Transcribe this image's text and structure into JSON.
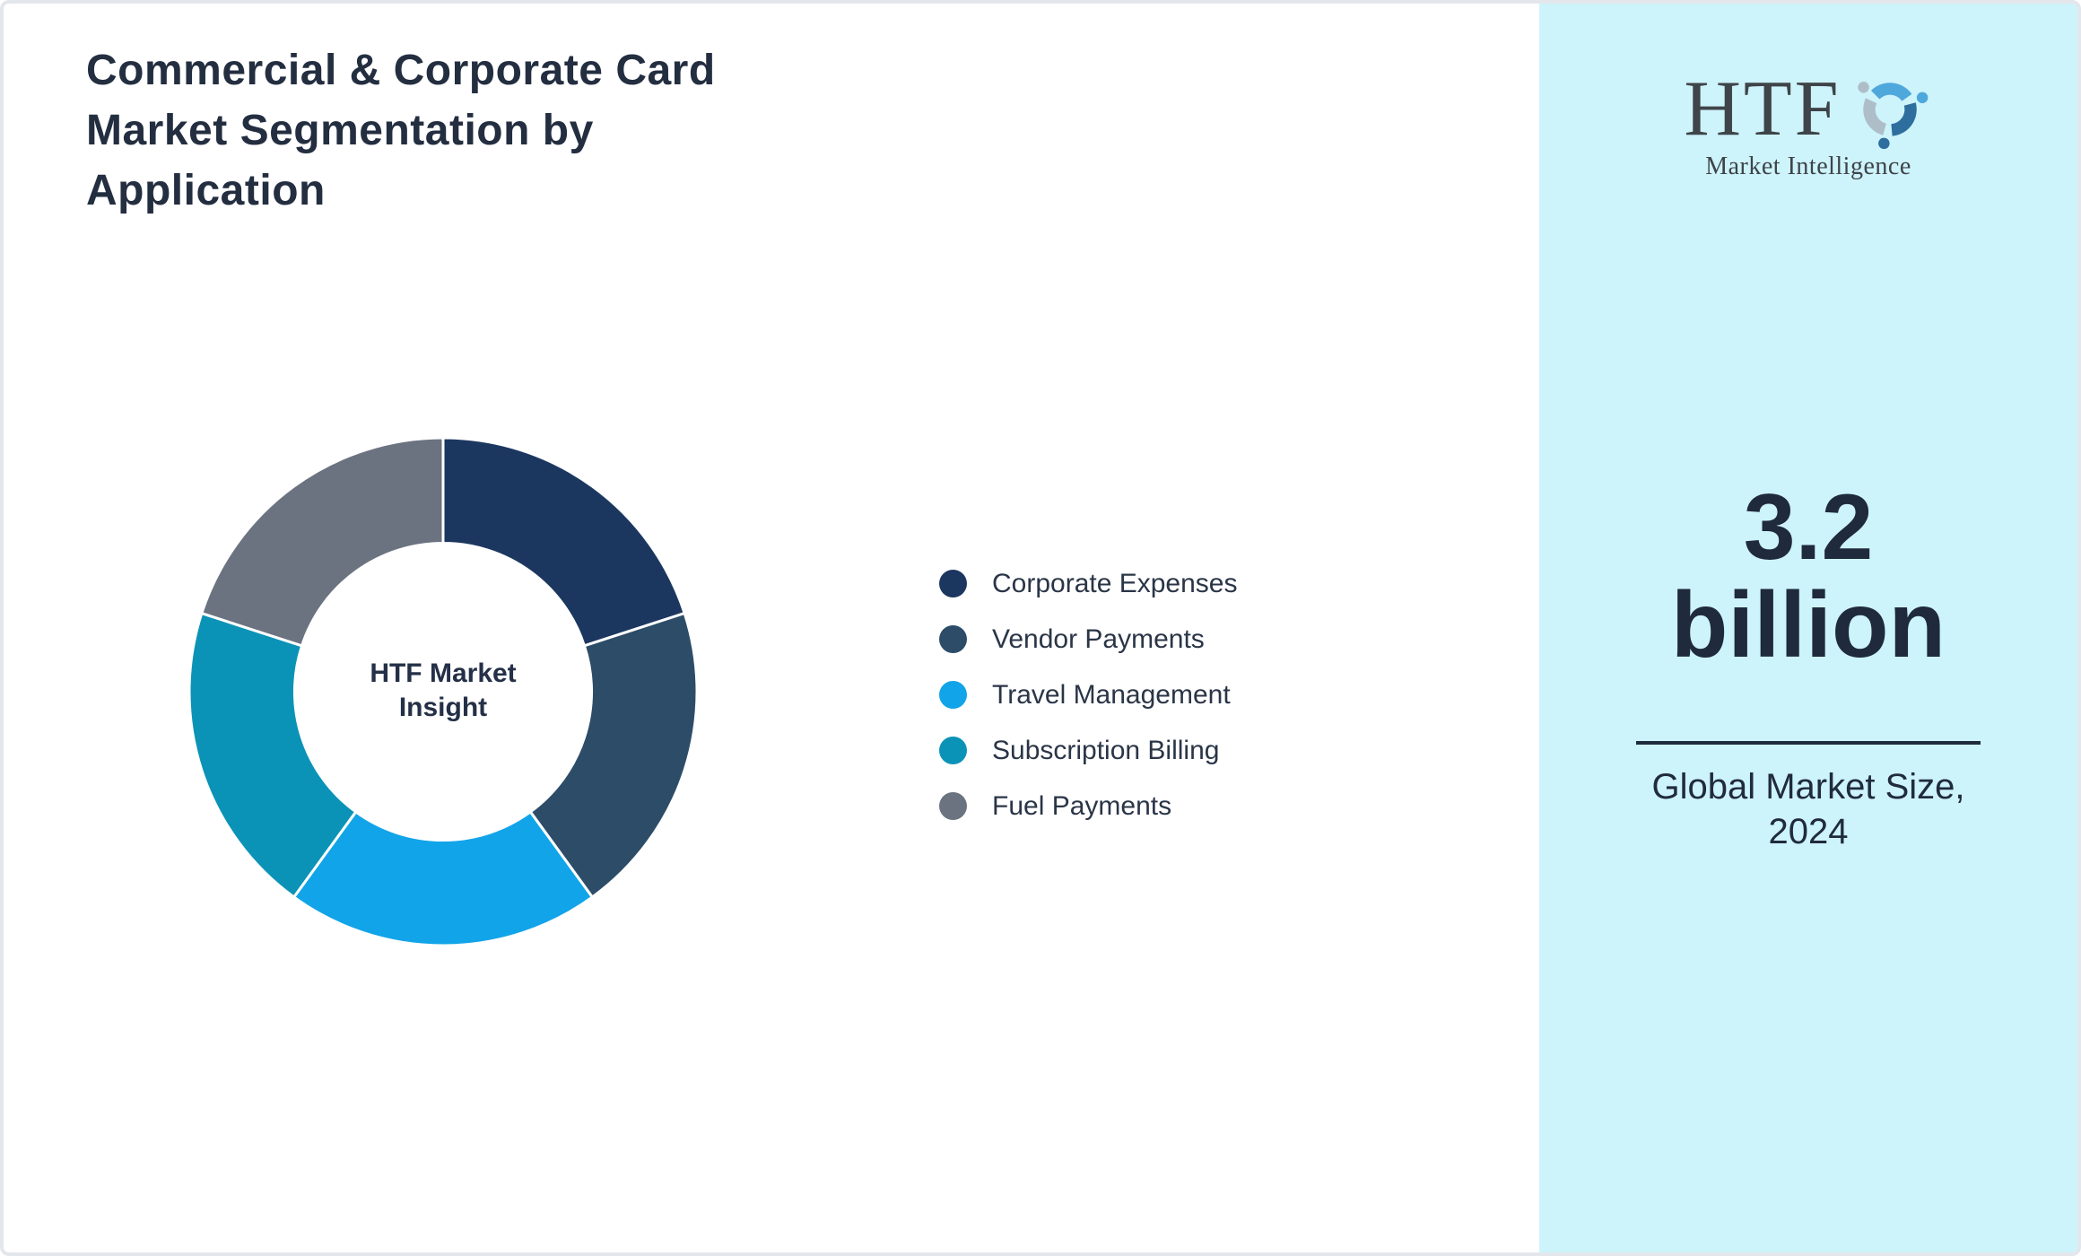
{
  "page": {
    "title_lines": [
      "Commercial & Corporate Card",
      "Market Segmentation by",
      "Application"
    ]
  },
  "chart_data": {
    "type": "pie",
    "variant": "donut",
    "title": "Commercial & Corporate Card Market Segmentation by Application",
    "categories": [
      "Corporate Expenses",
      "Vendor Payments",
      "Travel Management",
      "Subscription Billing",
      "Fuel Payments"
    ],
    "values": [
      20,
      20,
      20,
      20,
      20
    ],
    "unit": "percent share (equal segments, unlabeled)",
    "colors": [
      "#1C375F",
      "#2D4C68",
      "#12A4E9",
      "#0B93B7",
      "#6B7381"
    ],
    "start_angle_deg": 0,
    "direction": "clockwise",
    "inner_radius_ratio": 0.585,
    "slice_gap_color": "#FFFFFF",
    "center_label_lines": [
      "HTF Market",
      "Insight"
    ],
    "legend_position": "right",
    "grid": false
  },
  "sidebar": {
    "background": "#CDF3FB",
    "logo": {
      "text": "HTF",
      "subtext": "Market Intelligence",
      "icon": "three-dolphins-swirl-icon",
      "icon_colors": [
        "#4FA8DC",
        "#2E6E9E",
        "#AEBEC9"
      ]
    },
    "market_size_lines": [
      "3.2",
      "billion"
    ],
    "caption_lines": [
      "Global Market Size,",
      "2024"
    ]
  },
  "theme": {
    "title_color": "#232E40",
    "accent_dark": "#1F2A3C",
    "page_border": "#E3E7EB"
  }
}
